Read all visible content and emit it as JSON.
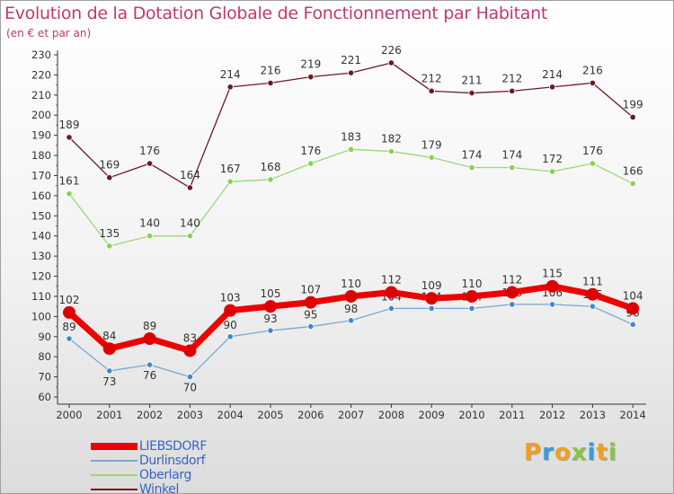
{
  "chart_data": {
    "type": "line",
    "title": "Evolution de la Dotation Globale de Fonctionnement par Habitant",
    "subtitle": "(en € et par an)",
    "x": [
      "2000",
      "2001",
      "2002",
      "2003",
      "2004",
      "2005",
      "2006",
      "2007",
      "2008",
      "2009",
      "2010",
      "2011",
      "2012",
      "2013",
      "2014"
    ],
    "ylim": [
      60,
      230
    ],
    "yticks": [
      60,
      70,
      80,
      90,
      100,
      110,
      120,
      130,
      140,
      150,
      160,
      170,
      180,
      190,
      200,
      210,
      220,
      230
    ],
    "grid": false,
    "legend_position": "bottom-left",
    "series": [
      {
        "name": "Winkel",
        "color": "#6b1a22",
        "marker": "#6b1a22",
        "values": [
          189,
          169,
          176,
          164,
          214,
          216,
          219,
          221,
          226,
          212,
          211,
          212,
          214,
          216,
          199
        ]
      },
      {
        "name": "Oberlarg",
        "color": "#99d87a",
        "marker": "#84d44e",
        "values": [
          161,
          135,
          140,
          140,
          167,
          168,
          176,
          183,
          182,
          179,
          174,
          174,
          172,
          176,
          166
        ]
      },
      {
        "name": "Durlinsdorf",
        "color": "#7aa7d0",
        "marker": "#3f88cc",
        "values": [
          89,
          73,
          76,
          70,
          90,
          93,
          95,
          98,
          104,
          104,
          104,
          106,
          106,
          105,
          96
        ]
      },
      {
        "name": "LIEBSDORF",
        "color": "#ee0000",
        "marker": "#dd0000",
        "values": [
          102,
          84,
          89,
          83,
          103,
          105,
          107,
          110,
          112,
          109,
          110,
          112,
          115,
          111,
          104
        ]
      }
    ]
  },
  "legend": [
    {
      "name": "LIEBSDORF",
      "color": "#ee0000"
    },
    {
      "name": "Durlinsdorf",
      "color": "#7aa7d0"
    },
    {
      "name": "Oberlarg",
      "color": "#99d87a"
    },
    {
      "name": "Winkel",
      "color": "#6b1a22"
    }
  ],
  "logo": {
    "text": "Proxiti",
    "letters": [
      {
        "ch": "P",
        "color": "#f0a020"
      },
      {
        "ch": "r",
        "color": "#3a9ad9"
      },
      {
        "ch": "o",
        "color": "#f0a020"
      },
      {
        "ch": "x",
        "color": "#8bc34a"
      },
      {
        "ch": "i",
        "color": "#3a9ad9"
      },
      {
        "ch": "t",
        "color": "#f0a020"
      },
      {
        "ch": "i",
        "color": "#8bc34a"
      }
    ]
  }
}
